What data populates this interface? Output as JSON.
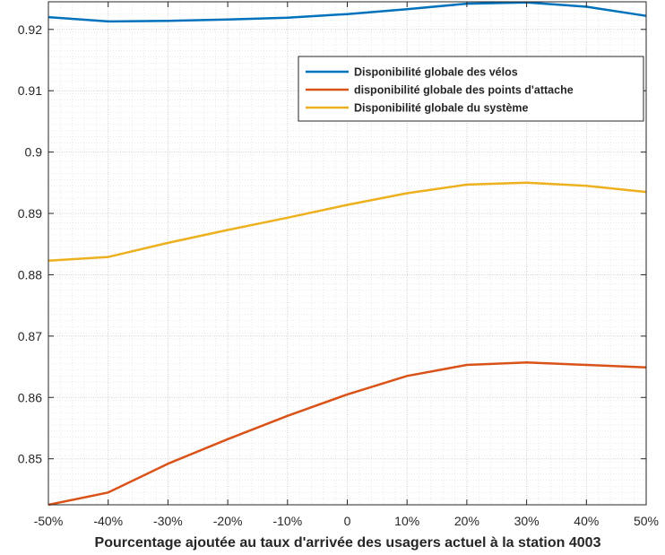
{
  "chart_data": {
    "type": "line",
    "title": "",
    "xlabel": "Pourcentage ajoutée au taux d'arrivée des usagers actuel à la station 4003",
    "ylabel": "",
    "categories": [
      "-50%",
      "-40%",
      "-30%",
      "-20%",
      "-10%",
      "0",
      "10%",
      "20%",
      "30%",
      "40%",
      "50%"
    ],
    "x": [
      -50,
      -40,
      -30,
      -20,
      -10,
      0,
      10,
      20,
      30,
      40,
      50
    ],
    "xlim": [
      -50,
      50
    ],
    "ylim": [
      0.8425,
      0.9245
    ],
    "yticks": [
      0.85,
      0.86,
      0.87,
      0.88,
      0.89,
      0.9,
      0.91,
      0.92
    ],
    "ytick_labels": [
      "0.85",
      "0.86",
      "0.87",
      "0.88",
      "0.89",
      "0.9",
      "0.91",
      "0.92"
    ],
    "grid": true,
    "minor_grid": true,
    "legend_position": "top-right",
    "series": [
      {
        "name": "Disponibilité globale des vélos",
        "color": "#0072BD",
        "values": [
          0.922,
          0.9213,
          0.9214,
          0.9216,
          0.9219,
          0.9225,
          0.9233,
          0.9242,
          0.9244,
          0.9237,
          0.9222
        ]
      },
      {
        "name": "disponibilité globale des points d'attache",
        "color": "#D95319",
        "values": [
          0.8425,
          0.8445,
          0.8492,
          0.8532,
          0.857,
          0.8605,
          0.8635,
          0.8653,
          0.8657,
          0.8653,
          0.8649
        ]
      },
      {
        "name": "Disponibilité globale du système",
        "color": "#EDB120",
        "values": [
          0.8823,
          0.8829,
          0.8852,
          0.8873,
          0.8893,
          0.8914,
          0.8933,
          0.8947,
          0.895,
          0.8945,
          0.8935
        ]
      }
    ]
  }
}
